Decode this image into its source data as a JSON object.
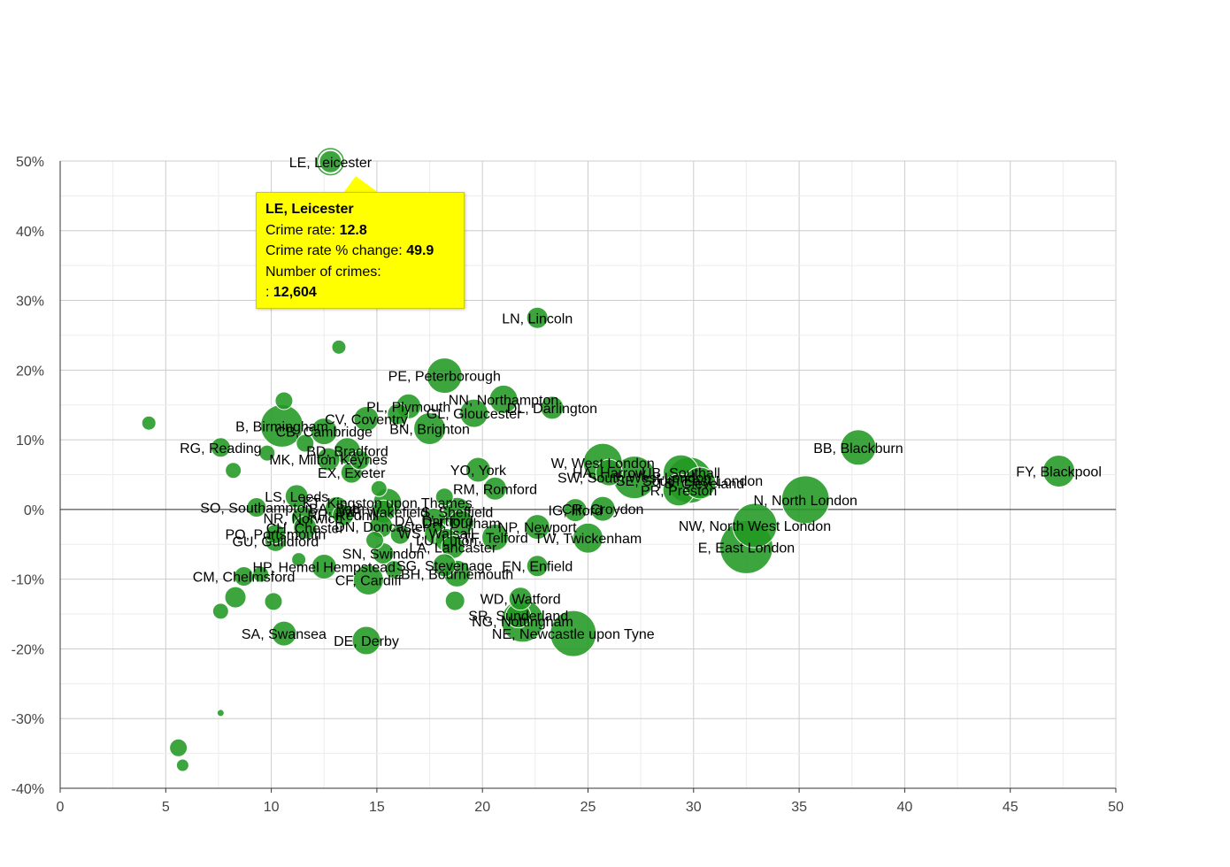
{
  "chart_data": {
    "type": "scatter",
    "title": "",
    "xlabel": "",
    "ylabel": "",
    "xlim": [
      0,
      50
    ],
    "ylim": [
      -40,
      50
    ],
    "x_ticks": [
      "0",
      "5",
      "10",
      "15",
      "20",
      "25",
      "30",
      "35",
      "40",
      "45",
      "50"
    ],
    "y_ticks": [
      "50%",
      "40%",
      "30%",
      "20%",
      "10%",
      "0%",
      "-10%",
      "-20%",
      "-30%",
      "-40%"
    ],
    "grid": true,
    "bubble_color": "#229922",
    "points": [
      {
        "label": "LE, Leicester",
        "x": 12.8,
        "y": 49.9,
        "r": 16
      },
      {
        "label": "LN, Lincoln",
        "x": 22.6,
        "y": 27.5,
        "r": 12
      },
      {
        "label": "",
        "x": 13.2,
        "y": 23.3,
        "r": 8
      },
      {
        "label": "PE, Peterborough",
        "x": 18.2,
        "y": 19.2,
        "r": 20
      },
      {
        "label": "NN, Northampton",
        "x": 21.0,
        "y": 15.8,
        "r": 16
      },
      {
        "label": "DL, Darlington",
        "x": 23.3,
        "y": 14.6,
        "r": 13
      },
      {
        "label": "PL, Plymouth",
        "x": 16.5,
        "y": 14.8,
        "r": 14
      },
      {
        "label": "GL, Gloucester",
        "x": 19.6,
        "y": 13.8,
        "r": 16
      },
      {
        "label": "",
        "x": 16.0,
        "y": 13.7,
        "r": 12
      },
      {
        "label": "CV, Coventry",
        "x": 14.5,
        "y": 13.0,
        "r": 14
      },
      {
        "label": "BN, Brighton",
        "x": 17.5,
        "y": 11.6,
        "r": 18
      },
      {
        "label": "",
        "x": 4.2,
        "y": 12.4,
        "r": 8
      },
      {
        "label": "",
        "x": 10.6,
        "y": 15.6,
        "r": 10
      },
      {
        "label": "B, Birmingham",
        "x": 10.5,
        "y": 12.0,
        "r": 24
      },
      {
        "label": "CB, Cambridge",
        "x": 12.5,
        "y": 11.2,
        "r": 15
      },
      {
        "label": "BD, Bradford",
        "x": 13.6,
        "y": 8.4,
        "r": 15
      },
      {
        "label": "RG, Reading",
        "x": 7.6,
        "y": 8.9,
        "r": 11
      },
      {
        "label": "",
        "x": 9.8,
        "y": 8.1,
        "r": 9
      },
      {
        "label": "",
        "x": 11.6,
        "y": 9.5,
        "r": 10
      },
      {
        "label": "MK, Milton Keynes",
        "x": 12.7,
        "y": 7.2,
        "r": 13
      },
      {
        "label": "",
        "x": 8.2,
        "y": 5.6,
        "r": 9
      },
      {
        "label": "EX, Exeter",
        "x": 13.8,
        "y": 5.3,
        "r": 12
      },
      {
        "label": "",
        "x": 14.2,
        "y": 7.1,
        "r": 11
      },
      {
        "label": "YO, York",
        "x": 19.8,
        "y": 5.7,
        "r": 14
      },
      {
        "label": "W, West London",
        "x": 25.7,
        "y": 6.7,
        "r": 22
      },
      {
        "label": "HA, Harrow",
        "x": 26.0,
        "y": 5.3,
        "r": 15
      },
      {
        "label": "SW, South West London",
        "x": 27.2,
        "y": 4.6,
        "r": 24
      },
      {
        "label": "UB, Southall",
        "x": 29.4,
        "y": 5.3,
        "r": 20
      },
      {
        "label": "SE, South East London",
        "x": 29.8,
        "y": 4.2,
        "r": 26
      },
      {
        "label": "PR, Preston",
        "x": 29.3,
        "y": 2.8,
        "r": 18
      },
      {
        "label": "TS, Cleveland",
        "x": 30.3,
        "y": 3.8,
        "r": 18
      },
      {
        "label": "BB, Blackburn",
        "x": 37.8,
        "y": 8.9,
        "r": 20
      },
      {
        "label": "FY, Blackpool",
        "x": 47.3,
        "y": 5.5,
        "r": 18
      },
      {
        "label": "N, North London",
        "x": 35.3,
        "y": 1.4,
        "r": 27
      },
      {
        "label": "RM, Romford",
        "x": 20.6,
        "y": 3.0,
        "r": 13
      },
      {
        "label": "",
        "x": 15.1,
        "y": 3.0,
        "r": 9
      },
      {
        "label": "LS, Leeds",
        "x": 11.2,
        "y": 1.9,
        "r": 13
      },
      {
        "label": "KT, Kingston upon Thames",
        "x": 15.5,
        "y": 1.0,
        "r": 16
      },
      {
        "label": "",
        "x": 18.2,
        "y": 1.8,
        "r": 10
      },
      {
        "label": "SO, Southampton",
        "x": 9.3,
        "y": 0.3,
        "r": 11
      },
      {
        "label": "BA, Bath",
        "x": 13.1,
        "y": 0.2,
        "r": 13
      },
      {
        "label": "WF, Wakefield",
        "x": 15.3,
        "y": -0.3,
        "r": 13
      },
      {
        "label": "CR, Croydon",
        "x": 25.7,
        "y": 0.1,
        "r": 14
      },
      {
        "label": "IG, Ilford",
        "x": 24.4,
        "y": -0.1,
        "r": 13
      },
      {
        "label": "NR, Norwich",
        "x": 11.5,
        "y": -1.2,
        "r": 13
      },
      {
        "label": "RH, Redhill",
        "x": 13.4,
        "y": -0.8,
        "r": 12
      },
      {
        "label": "S, Sheffield",
        "x": 18.8,
        "y": -0.3,
        "r": 16
      },
      {
        "label": "DA, Dartford",
        "x": 17.7,
        "y": -1.6,
        "r": 14
      },
      {
        "label": "DH, Durham",
        "x": 19.0,
        "y": -1.9,
        "r": 14
      },
      {
        "label": "CH, Chester",
        "x": 11.6,
        "y": -2.6,
        "r": 13
      },
      {
        "label": "DN, Doncaster",
        "x": 15.2,
        "y": -2.4,
        "r": 13
      },
      {
        "label": "NP, Newport",
        "x": 22.6,
        "y": -2.5,
        "r": 14
      },
      {
        "label": "WS, Walsall",
        "x": 17.8,
        "y": -3.4,
        "r": 13
      },
      {
        "label": "PO, Portsmouth",
        "x": 10.2,
        "y": -3.5,
        "r": 11
      },
      {
        "label": "LU, Luton",
        "x": 18.3,
        "y": -4.4,
        "r": 13
      },
      {
        "label": "TF, Telford",
        "x": 20.6,
        "y": -4.0,
        "r": 15
      },
      {
        "label": "TW, Twickenham",
        "x": 25.0,
        "y": -4.1,
        "r": 17
      },
      {
        "label": "GU, Guildford",
        "x": 10.2,
        "y": -4.5,
        "r": 12
      },
      {
        "label": "",
        "x": 16.1,
        "y": -3.6,
        "r": 11
      },
      {
        "label": "",
        "x": 14.9,
        "y": -4.4,
        "r": 10
      },
      {
        "label": "LA, Lancaster",
        "x": 18.6,
        "y": -5.4,
        "r": 13
      },
      {
        "label": "NW, North West London",
        "x": 32.9,
        "y": -2.3,
        "r": 25
      },
      {
        "label": "E, East London",
        "x": 32.5,
        "y": -5.4,
        "r": 30
      },
      {
        "label": "SN, Swindon",
        "x": 15.3,
        "y": -6.3,
        "r": 12
      },
      {
        "label": "",
        "x": 11.3,
        "y": -7.2,
        "r": 8
      },
      {
        "label": "HP, Hemel Hempstead",
        "x": 12.5,
        "y": -8.2,
        "r": 14
      },
      {
        "label": "",
        "x": 15.8,
        "y": -8.6,
        "r": 10
      },
      {
        "label": "SG, Stevenage",
        "x": 18.2,
        "y": -8.0,
        "r": 13
      },
      {
        "label": "EN, Enfield",
        "x": 22.6,
        "y": -8.1,
        "r": 12
      },
      {
        "label": "BH, Bournemouth",
        "x": 18.8,
        "y": -9.2,
        "r": 15
      },
      {
        "label": "CM, Chelmsford",
        "x": 8.7,
        "y": -9.6,
        "r": 11
      },
      {
        "label": "",
        "x": 9.5,
        "y": -9.3,
        "r": 9
      },
      {
        "label": "CF, Cardiff",
        "x": 14.6,
        "y": -10.1,
        "r": 17
      },
      {
        "label": "",
        "x": 8.3,
        "y": -12.6,
        "r": 12
      },
      {
        "label": "",
        "x": 10.1,
        "y": -13.2,
        "r": 10
      },
      {
        "label": "WD, Watford",
        "x": 21.8,
        "y": -12.8,
        "r": 13
      },
      {
        "label": "",
        "x": 18.7,
        "y": -13.1,
        "r": 11
      },
      {
        "label": "",
        "x": 7.6,
        "y": -14.6,
        "r": 9
      },
      {
        "label": "SR, Sunderland",
        "x": 21.7,
        "y": -15.2,
        "r": 14
      },
      {
        "label": "NG, Nottingham",
        "x": 21.9,
        "y": -16.0,
        "r": 24
      },
      {
        "label": "NE, Newcastle upon Tyne",
        "x": 24.3,
        "y": -17.8,
        "r": 26
      },
      {
        "label": "SA, Swansea",
        "x": 10.6,
        "y": -17.8,
        "r": 14
      },
      {
        "label": "DE, Derby",
        "x": 14.5,
        "y": -18.8,
        "r": 16
      },
      {
        "label": "",
        "x": 7.6,
        "y": -29.2,
        "r": 4
      },
      {
        "label": "",
        "x": 5.6,
        "y": -34.2,
        "r": 10
      },
      {
        "label": "",
        "x": 5.8,
        "y": -36.7,
        "r": 7
      }
    ],
    "tooltip": {
      "title": "LE, Leicester",
      "crime_rate_label": "Crime rate: ",
      "crime_rate": "12.8",
      "change_label": "Crime rate % change: ",
      "change": "49.9",
      "crimes_label": "Number of crimes:",
      "crimes_prefix": ": ",
      "crimes": "12,604"
    }
  }
}
